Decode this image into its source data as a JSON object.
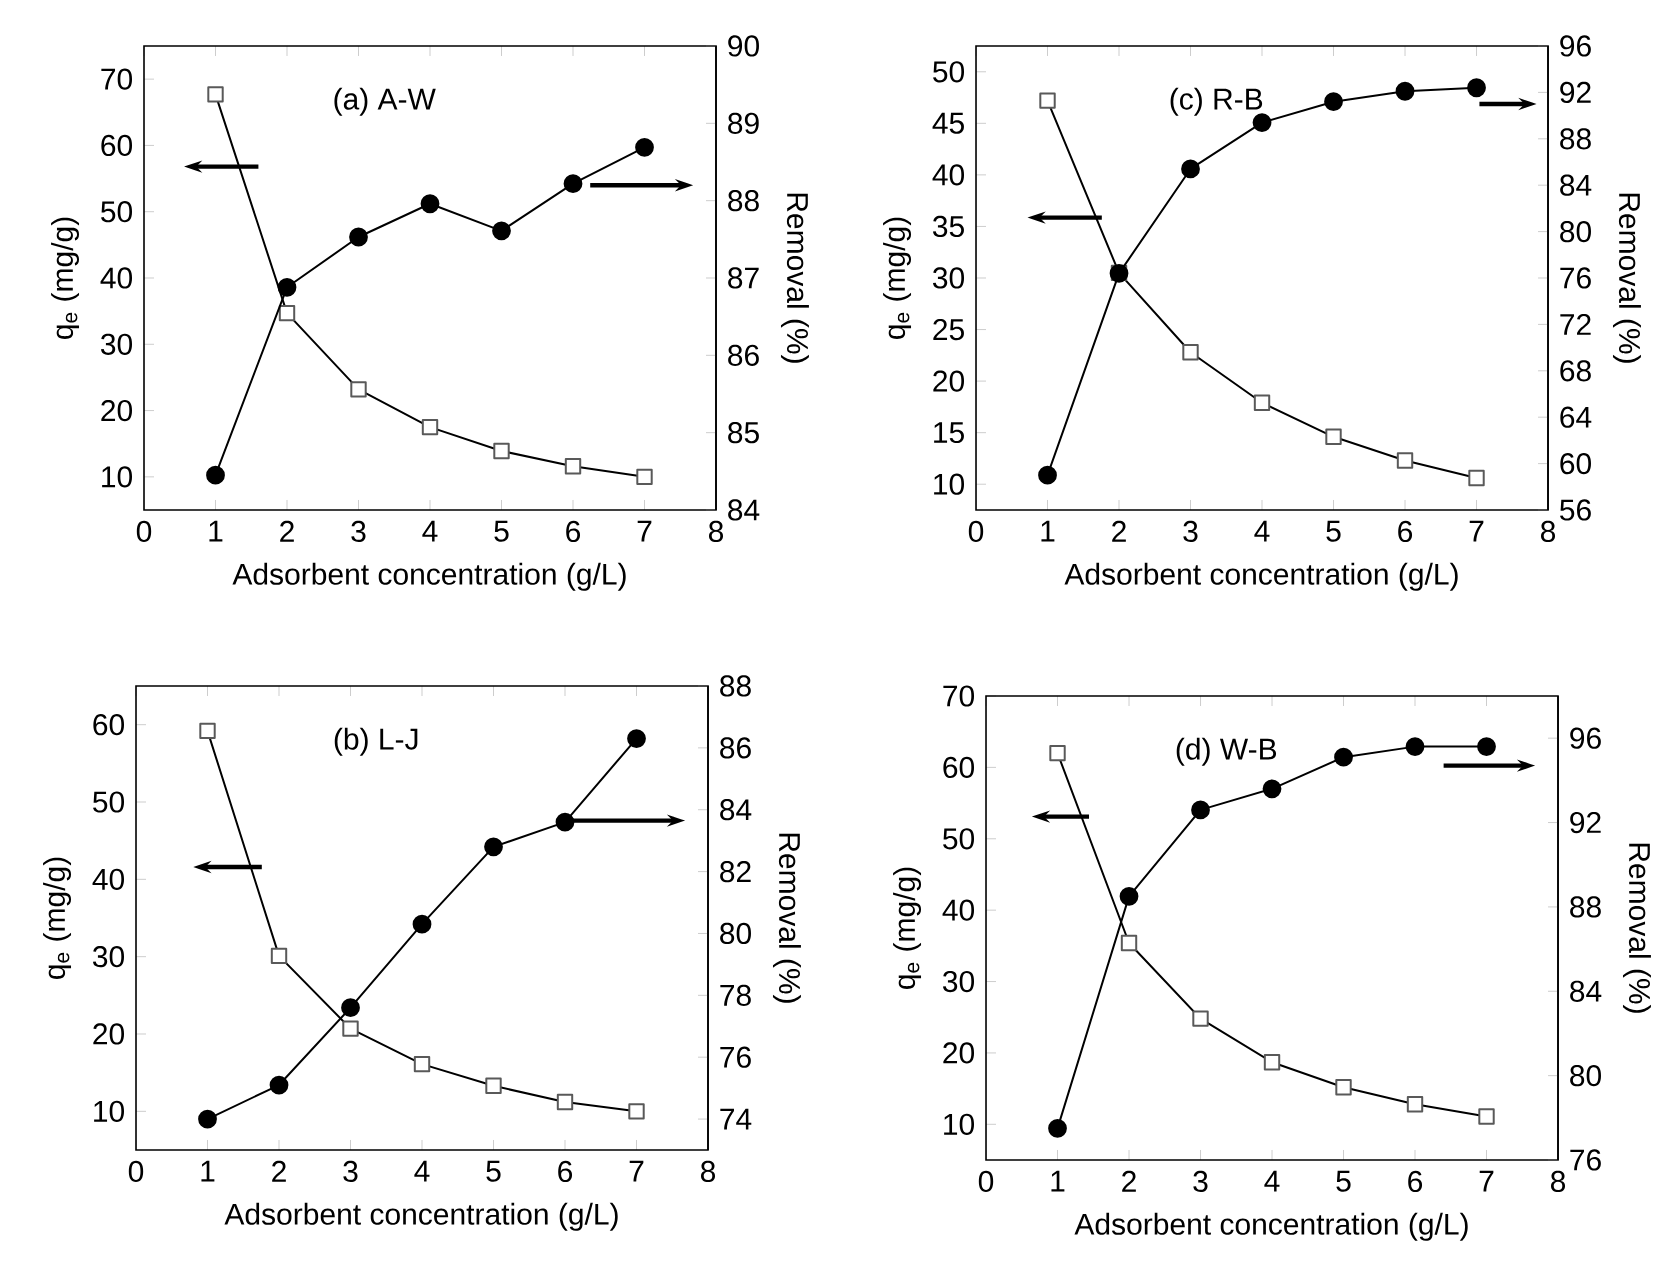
{
  "chart_data": [
    {
      "type": "line",
      "title": "(a) A-W",
      "xlabel": "Adsorbent concentration (g/L)",
      "ylabel": "q$_{e}$ (mg/g)",
      "y2label": "Removal (%)",
      "xlim": [
        0,
        8
      ],
      "xticks": [
        0,
        1,
        2,
        3,
        4,
        5,
        6,
        7,
        8
      ],
      "ylim": [
        5,
        75
      ],
      "yticks": [
        10,
        20,
        30,
        40,
        50,
        60,
        70
      ],
      "y2lim": [
        84,
        90
      ],
      "y2ticks": [
        84,
        85,
        86,
        87,
        88,
        89,
        90
      ],
      "x": [
        1,
        2,
        3,
        4,
        5,
        6,
        7
      ],
      "line_style": "solid",
      "series": [
        {
          "color": "#000000",
          "marker": "square",
          "values": [
            67.7,
            34.7,
            23.2,
            17.5,
            13.9,
            11.6,
            10.0
          ]
        },
        {
          "color": "#000000",
          "marker": "circle",
          "axis": "y2",
          "values": [
            84.45,
            86.88,
            87.53,
            87.96,
            87.61,
            88.22,
            88.69
          ]
        }
      ]
    },
    {
      "type": "line",
      "title": "(c) R-B",
      "xlabel": "Adsorbent concentration (g/L)",
      "ylabel": "q$_{e}$ (mg/g)",
      "y2label": "Removal (%)",
      "xlim": [
        0,
        8
      ],
      "xticks": [
        0,
        1,
        2,
        3,
        4,
        5,
        6,
        7,
        8
      ],
      "ylim": [
        7.5,
        52.5
      ],
      "yticks": [
        10,
        15,
        20,
        25,
        30,
        35,
        40,
        45,
        50
      ],
      "y2lim": [
        56,
        96
      ],
      "y2ticks": [
        56,
        60,
        64,
        68,
        72,
        76,
        80,
        84,
        88,
        92,
        96
      ],
      "x": [
        1,
        2,
        3,
        4,
        5,
        6,
        7
      ],
      "line_style": "solid",
      "series": [
        {
          "color": "#000000",
          "marker": "square",
          "values": [
            47.2,
            30.5,
            22.8,
            17.9,
            14.6,
            12.3,
            10.6
          ]
        },
        {
          "color": "#000000",
          "marker": "circle",
          "axis": "y2",
          "values": [
            59.0,
            76.4,
            85.4,
            89.4,
            91.2,
            92.1,
            92.4
          ]
        }
      ]
    },
    {
      "type": "line",
      "title": "(b) L-J",
      "xlabel": "Adsorbent concentration (g/L)",
      "ylabel": "q$_{e}$ (mg/g)",
      "y2label": "Removal (%)",
      "xlim": [
        0,
        8
      ],
      "xticks": [
        0,
        1,
        2,
        3,
        4,
        5,
        6,
        7,
        8
      ],
      "ylim": [
        5,
        65
      ],
      "yticks": [
        10,
        20,
        30,
        40,
        50,
        60
      ],
      "y2lim": [
        73,
        88
      ],
      "y2ticks": [
        74,
        76,
        78,
        80,
        82,
        84,
        86,
        88
      ],
      "x": [
        1,
        2,
        3,
        4,
        5,
        6,
        7
      ],
      "line_style": "solid",
      "series": [
        {
          "color": "#000000",
          "marker": "square",
          "values": [
            59.2,
            30.1,
            20.7,
            16.1,
            13.3,
            11.2,
            10.0
          ]
        },
        {
          "color": "#000000",
          "marker": "circle",
          "axis": "y2",
          "values": [
            74.0,
            75.1,
            77.6,
            80.3,
            82.8,
            83.6,
            86.3
          ]
        }
      ]
    },
    {
      "type": "line",
      "title": "(d) W-B",
      "xlabel": "Adsorbent concentration (g/L)",
      "ylabel": "q$_{e}$ (mg/g)",
      "y2label": "Removal (%)",
      "xlim": [
        0,
        8
      ],
      "xticks": [
        0,
        1,
        2,
        3,
        4,
        5,
        6,
        7,
        8
      ],
      "ylim": [
        5,
        70
      ],
      "yticks": [
        10,
        20,
        30,
        40,
        50,
        60,
        70
      ],
      "y2lim": [
        76,
        98
      ],
      "y2ticks": [
        76,
        80,
        84,
        88,
        92,
        96
      ],
      "x": [
        1,
        2,
        3,
        4,
        5,
        6,
        7
      ],
      "line_style": "solid",
      "series": [
        {
          "color": "#000000",
          "marker": "square",
          "values": [
            62.0,
            35.4,
            24.8,
            18.7,
            15.2,
            12.8,
            11.1
          ]
        },
        {
          "color": "#000000",
          "marker": "circle",
          "axis": "y2",
          "values": [
            77.5,
            88.5,
            92.6,
            93.6,
            95.1,
            95.6,
            95.6
          ]
        }
      ]
    }
  ]
}
